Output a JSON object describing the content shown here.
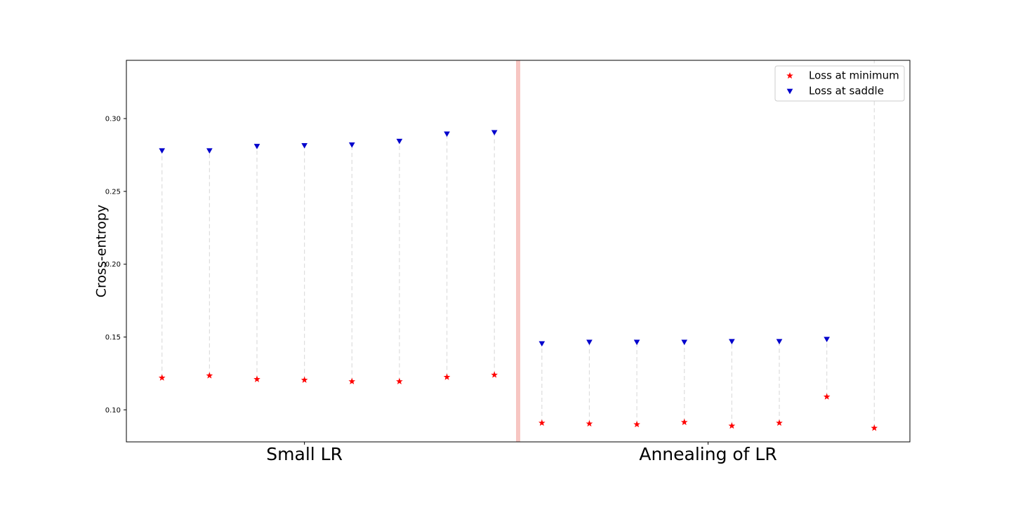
{
  "chart_data": {
    "type": "scatter",
    "ylabel": "Cross-entropy",
    "ylim": [
      0.078,
      0.34
    ],
    "yticks": [
      0.1,
      0.15,
      0.2,
      0.25,
      0.3
    ],
    "ytick_labels": [
      "0.10",
      "0.15",
      "0.20",
      "0.25",
      "0.30"
    ],
    "xlim": [
      0,
      16.5
    ],
    "group_labels": [
      {
        "text": "Small LR",
        "x": 3.75
      },
      {
        "text": "Annealing of LR",
        "x": 12.25
      }
    ],
    "divider_x": 8.25,
    "x": [
      0.75,
      1.75,
      2.75,
      3.75,
      4.75,
      5.75,
      6.75,
      7.75,
      8.75,
      9.75,
      10.75,
      11.75,
      12.75,
      13.75,
      14.75,
      15.75
    ],
    "series": [
      {
        "name": "Loss at minimum",
        "marker": "star",
        "color": "#ff0000",
        "values": [
          0.122,
          0.1235,
          0.121,
          0.1205,
          0.1195,
          0.1195,
          0.1225,
          0.124,
          0.091,
          0.0905,
          0.09,
          0.0915,
          0.089,
          0.091,
          0.109,
          0.0875
        ]
      },
      {
        "name": "Loss at saddle",
        "marker": "triangle-down",
        "color": "#0000cc",
        "values": [
          0.278,
          0.278,
          0.281,
          0.2815,
          0.282,
          0.2845,
          0.2895,
          0.2905,
          0.1455,
          0.1465,
          0.1465,
          0.1465,
          0.147,
          0.147,
          0.1485,
          null
        ]
      }
    ],
    "legend_position": "top-right",
    "grid": false
  }
}
